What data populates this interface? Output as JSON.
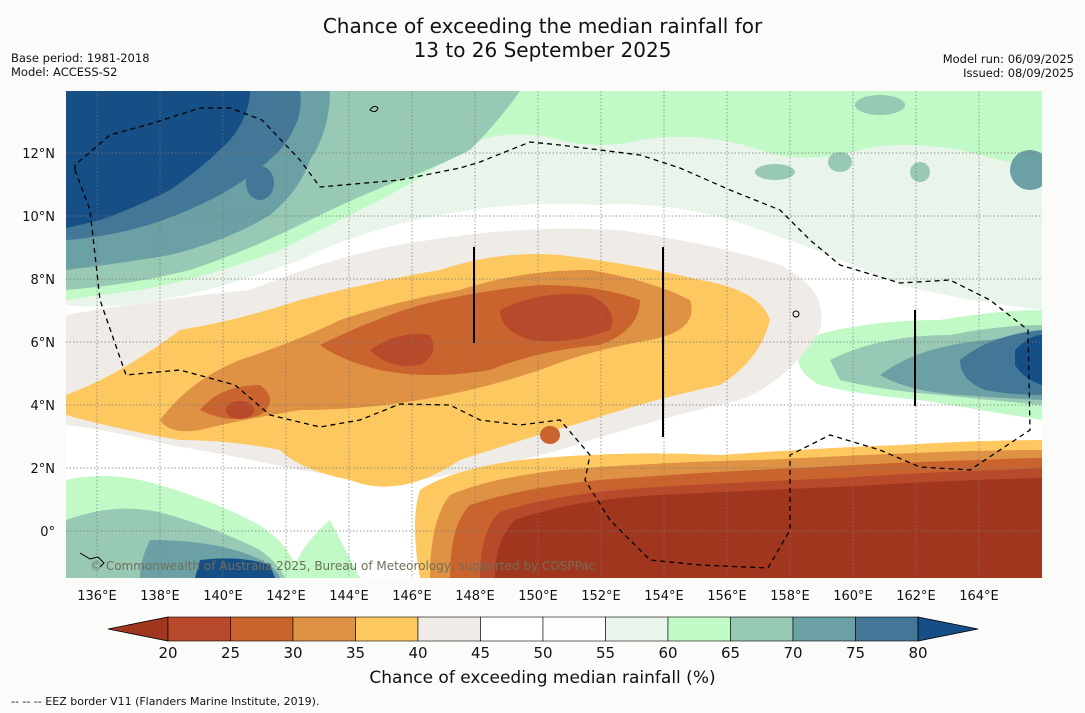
{
  "title_line1": "Chance of exceeding the median rainfall for",
  "title_line2": "13 to 26 September 2025",
  "base_period": "Base period: 1981-2018",
  "model": "Model: ACCESS-S2",
  "model_run": "Model run: 06/09/2025",
  "issued": "Issued: 08/09/2025",
  "copyright": "© Commonwealth of Australia 2025, Bureau of Meteorology, supported by COSPPac",
  "legend_title": "Chance of exceeding median rainfall (%)",
  "footer_note": "-- -- -- EEZ border V11 (Flanders Marine Institute, 2019).",
  "lon_labels": [
    "136°E",
    "138°E",
    "140°E",
    "142°E",
    "144°E",
    "146°E",
    "148°E",
    "150°E",
    "152°E",
    "154°E",
    "156°E",
    "158°E",
    "160°E",
    "162°E",
    "164°E"
  ],
  "lat_labels": [
    "12°N",
    "10°N",
    "8°N",
    "6°N",
    "4°N",
    "2°N",
    "0°"
  ],
  "legend_ticks": [
    "20",
    "25",
    "30",
    "35",
    "40",
    "45",
    "50",
    "55",
    "60",
    "65",
    "70",
    "75",
    "80"
  ],
  "legend_colors": [
    "#a1361f",
    "#b8492a",
    "#c9642f",
    "#df9144",
    "#fdc860",
    "#efebe6",
    "#ffffff",
    "#fdfefd",
    "#e9f5ea",
    "#c1fac7",
    "#97c9b4",
    "#6ba1a4",
    "#427797",
    "#164e86"
  ]
}
